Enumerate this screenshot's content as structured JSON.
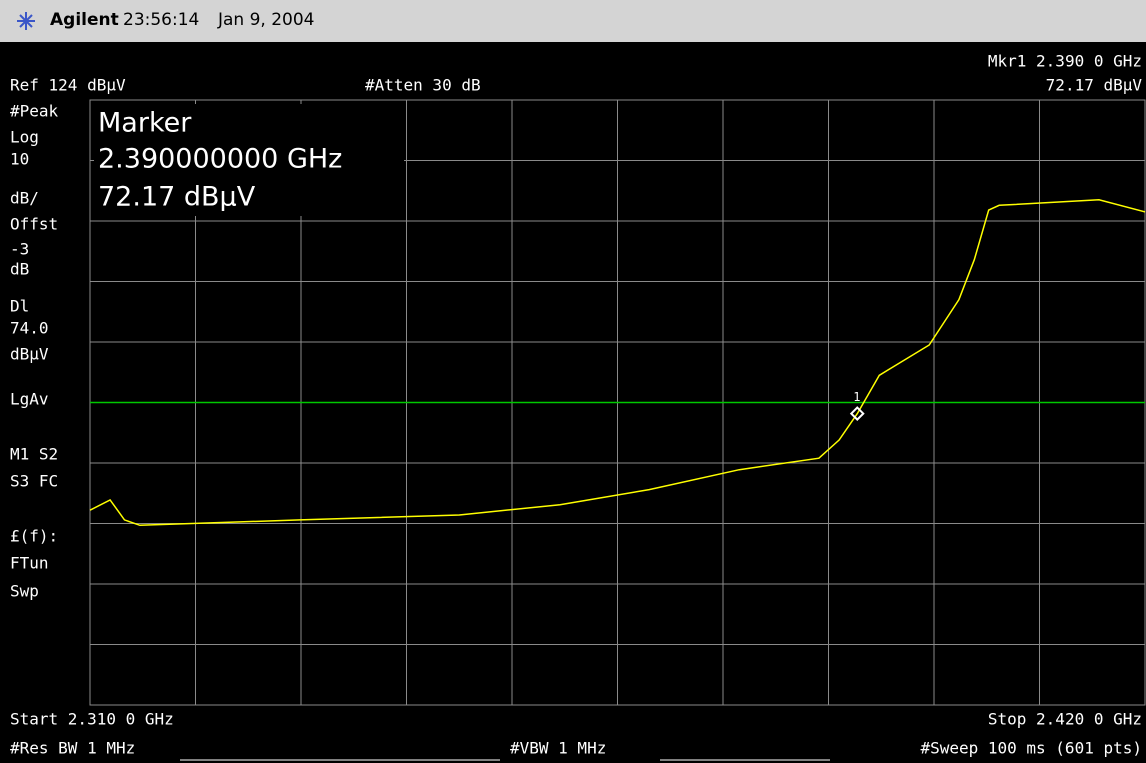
{
  "header": {
    "brand": "Agilent",
    "time": "23:56:14",
    "date": "Jan 9, 2004"
  },
  "top": {
    "marker_readout": "Mkr1  2.390 0 GHz",
    "marker_level": "72.17 dBµV",
    "ref": "Ref 124 dBµV",
    "atten": "#Atten 30 dB"
  },
  "side": [
    "#Peak",
    "Log",
    "10",
    "dB/",
    "Offst",
    "-3",
    "dB",
    "Dl",
    "74.0",
    "dBµV",
    "LgAv",
    "M1  S2",
    "S3  FC",
    "£(f):",
    "FTun",
    "Swp"
  ],
  "marker_box": [
    "Marker",
    "2.390000000 GHz",
    " 72.17 dBµV"
  ],
  "bottom": {
    "start": "Start 2.310 0 GHz",
    "stop": "Stop 2.420 0 GHz",
    "rbw": "#Res BW 1 MHz",
    "vbw": "#VBW 1 MHz",
    "sweep": "#Sweep 100 ms (601 pts)"
  },
  "trace": {
    "xlim": [
      2.31,
      2.42
    ],
    "ylim": [
      24,
      124
    ],
    "color": "#ffff00",
    "x": [
      2.31,
      2.3121,
      2.3136,
      2.3152,
      2.3319,
      2.3485,
      2.359,
      2.3683,
      2.3777,
      2.386,
      2.3881,
      2.39,
      2.3923,
      2.3975,
      2.4006,
      2.4022,
      2.4037,
      2.4048,
      2.4152,
      2.42
    ],
    "y": [
      56.2,
      57.9,
      54.6,
      53.7,
      54.6,
      55.4,
      57.1,
      59.6,
      62.9,
      64.8,
      67.8,
      72.17,
      78.5,
      83.5,
      91,
      97.6,
      105.8,
      106.6,
      107.5,
      105.5
    ]
  },
  "display_line": {
    "value": 74.0,
    "color": "#00c800"
  },
  "marker": {
    "label": "1",
    "x": 2.39,
    "y": 72.17
  }
}
